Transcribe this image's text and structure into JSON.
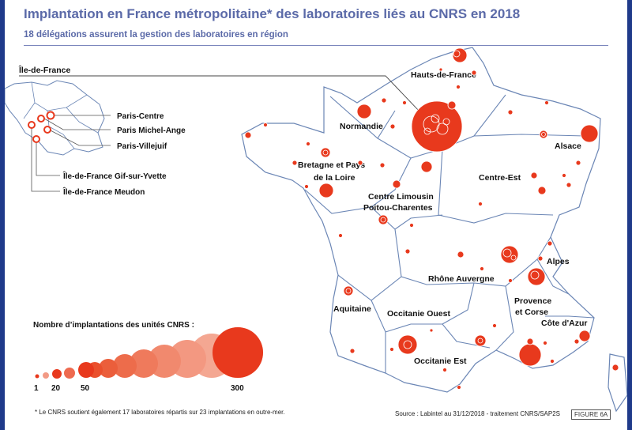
{
  "title": "Implantation en France métropolitaine* des laboratoires liés au CNRS en 2018",
  "subtitle": "18 délégations assurent la gestion des laboratoires en région",
  "inset": {
    "region": "Île-de-France",
    "labels": [
      "Paris-Centre",
      "Paris Michel-Ange",
      "Paris-Villejuif",
      "Île-de-France Gif-sur-Yvette",
      "Île-de-France Meudon"
    ]
  },
  "regions": {
    "hauts_de_france": "Hauts-de-France",
    "normandie": "Normandie",
    "alsace": "Alsace",
    "bretagne_1": "Bretagne et Pays",
    "bretagne_2": "de la Loire",
    "centre_est": "Centre-Est",
    "centre_limousin_1": "Centre Limousin",
    "centre_limousin_2": "Poitou-Charentes",
    "alpes": "Alpes",
    "rhone_auvergne": "Rhône Auvergne",
    "aquitaine": "Aquitaine",
    "provence_1": "Provence",
    "provence_2": "et Corse",
    "occitanie_ouest": "Occitanie Ouest",
    "cote_azur": "Côte d'Azur",
    "occitanie_est": "Occitanie Est"
  },
  "legend": {
    "title": "Nombre d’implantations des unités CNRS :",
    "values": [
      "1",
      "20",
      "50",
      "300"
    ]
  },
  "footnote": "* Le CNRS soutient également 17 laboratoires répartis sur 23 implantations en outre-mer.",
  "source": "Source : Labintel au 31/12/2018 - traitement CNRS/SAP2S",
  "figure": "FIGURE 6A",
  "colors": {
    "accent": "#e8391d",
    "title": "#5b6aa8",
    "border": "#1f3a8a"
  }
}
